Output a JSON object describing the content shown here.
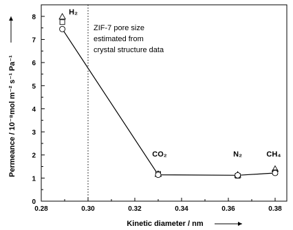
{
  "chart_data": {
    "type": "scatter",
    "title": "",
    "xlabel": "Kinetic diameter / nm",
    "ylabel": "Permeance / 10⁻⁸mol m⁻² s⁻¹ Pa⁻¹",
    "xlim": [
      0.28,
      0.385
    ],
    "ylim": [
      0,
      8.5
    ],
    "x_ticks": [
      "0.28",
      "0.30",
      "0.32",
      "0.34",
      "0.36",
      "0.38"
    ],
    "y_ticks": [
      "0",
      "1",
      "2",
      "3",
      "4",
      "5",
      "6",
      "7",
      "8"
    ],
    "grid": false,
    "reference_line": {
      "x": 0.3,
      "style": "dotted",
      "label_lines": [
        "ZIF-7 pore size",
        "estimated from",
        "crystal structure data"
      ]
    },
    "gases": [
      {
        "name": "H₂",
        "x": 0.289
      },
      {
        "name": "CO₂",
        "x": 0.33
      },
      {
        "name": "N₂",
        "x": 0.364
      },
      {
        "name": "CH₄",
        "x": 0.38
      }
    ],
    "series": [
      {
        "marker": "circle",
        "connected": true,
        "points": [
          [
            0.289,
            7.45
          ],
          [
            0.33,
            1.14
          ],
          [
            0.364,
            1.12
          ],
          [
            0.38,
            1.22
          ]
        ]
      },
      {
        "marker": "square",
        "connected": false,
        "points": [
          [
            0.289,
            7.75
          ],
          [
            0.33,
            1.18
          ],
          [
            0.364,
            1.1
          ],
          [
            0.38,
            1.25
          ]
        ]
      },
      {
        "marker": "triangle",
        "connected": false,
        "points": [
          [
            0.289,
            7.97
          ],
          [
            0.33,
            1.16
          ],
          [
            0.364,
            1.13
          ],
          [
            0.38,
            1.38
          ]
        ]
      }
    ]
  }
}
